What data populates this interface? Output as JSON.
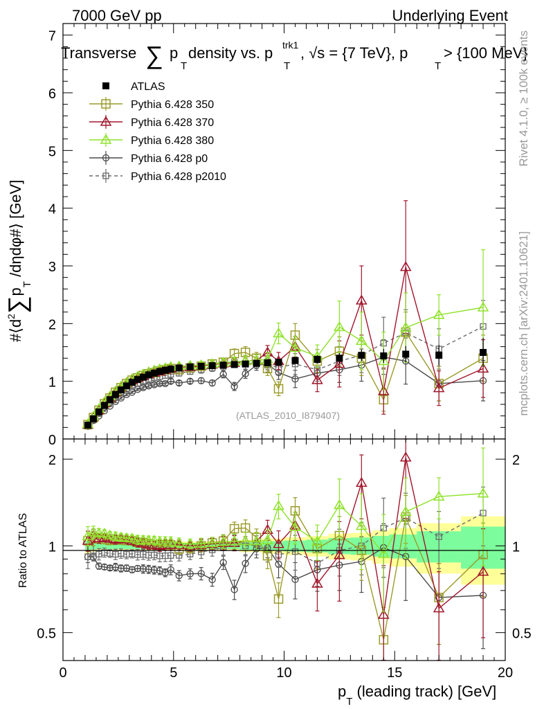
{
  "header": {
    "left": "7000 GeV pp",
    "right": "Underlying Event"
  },
  "title": {
    "prefix": "Transverse",
    "sum": "∑",
    "p": "p",
    "sub_t": "T",
    "mid": " density vs. p",
    "sup_trk1": "trk1",
    "sub_t2": "T",
    "rest": ", √s = {7 TeV}, p",
    "sub_t3": "T",
    "tail": " > {100 MeV}"
  },
  "side_labels": {
    "rivet": "Rivet 4.1.0, ≥ 100k events",
    "mcplots": "mcplots.cern.ch [arXiv:2401.10621]"
  },
  "watermark": "(ATLAS_2010_I879407)",
  "axes": {
    "ylabel_main_parts": [
      "#⟨d",
      "2",
      "∑",
      "p",
      "T",
      " /dηdφ#⟩ [GeV]"
    ],
    "ylabel_ratio": "Ratio to ATLAS",
    "xlabel_parts": [
      "p",
      "T",
      " (leading track) [GeV]"
    ],
    "main_yticks": [
      "0",
      "1",
      "2",
      "3",
      "4",
      "5",
      "6",
      "7"
    ],
    "ratio_yticks": [
      "0.5",
      "1",
      "2"
    ],
    "xticks": [
      "0",
      "5",
      "10",
      "15",
      "20"
    ]
  },
  "colors": {
    "atlas": "#000000",
    "p350": "#9a9a2a",
    "p370": "#a0142a",
    "p380": "#8ee22a",
    "p0": "#4a4a4a",
    "p2010": "#6a6a6a",
    "band_inner": "#7cfc9c",
    "band_outer": "#ffff99"
  },
  "chart_data": {
    "type": "scatter",
    "xlim": [
      0,
      20
    ],
    "main_ylim": [
      0,
      7.2
    ],
    "ratio_ylim": [
      0.4,
      2.35
    ],
    "x": [
      1.0,
      1.25,
      1.5,
      1.75,
      2.0,
      2.25,
      2.5,
      2.75,
      3.0,
      3.25,
      3.5,
      3.75,
      4.0,
      4.25,
      4.5,
      4.75,
      5.0,
      5.25,
      5.5,
      5.75,
      6.0,
      6.25,
      6.5,
      6.75,
      7.0,
      7.25,
      7.5,
      7.75,
      8.0,
      8.25,
      8.5,
      8.75,
      9.0,
      9.25,
      9.5,
      9.75,
      10.0,
      10.5,
      11.0,
      11.5,
      12.0,
      12.5,
      13.0,
      13.5,
      14.0,
      14.5,
      15.0,
      15.5,
      16.5,
      17.0,
      18.5,
      19.0
    ],
    "bins_x": [
      1.125,
      1.375,
      1.625,
      1.875,
      2.125,
      2.375,
      2.625,
      2.875,
      3.125,
      3.375,
      3.625,
      3.875,
      4.125,
      4.375,
      4.625,
      4.875,
      5.25,
      5.75,
      6.25,
      6.75,
      7.25,
      7.75,
      8.25,
      8.75,
      9.25,
      9.75,
      10.5,
      11.5,
      12.5,
      13.5,
      14.5,
      15.5,
      17.0,
      19.0
    ],
    "series": [
      {
        "name": "ATLAS",
        "key": "atlas",
        "values": [
          0.24,
          0.35,
          0.47,
          0.58,
          0.68,
          0.77,
          0.85,
          0.92,
          0.98,
          1.03,
          1.07,
          1.11,
          1.14,
          1.17,
          1.19,
          1.21,
          1.23,
          1.25,
          1.26,
          1.27,
          1.28,
          1.29,
          1.3,
          1.31,
          1.32,
          1.33,
          1.36,
          1.38,
          1.4,
          1.45,
          1.44,
          1.47,
          1.45,
          1.5
        ],
        "errors": [
          0.01,
          0.01,
          0.01,
          0.01,
          0.01,
          0.01,
          0.01,
          0.01,
          0.01,
          0.01,
          0.01,
          0.01,
          0.01,
          0.02,
          0.02,
          0.02,
          0.02,
          0.02,
          0.02,
          0.03,
          0.03,
          0.03,
          0.04,
          0.04,
          0.05,
          0.05,
          0.06,
          0.07,
          0.09,
          0.1,
          0.12,
          0.14,
          0.18,
          0.25
        ]
      },
      {
        "name": "Pythia 6.428 350",
        "key": "p350",
        "values": [
          0.25,
          0.37,
          0.5,
          0.61,
          0.71,
          0.81,
          0.89,
          0.96,
          1.02,
          1.06,
          1.1,
          1.13,
          1.15,
          1.18,
          1.2,
          1.22,
          1.2,
          1.23,
          1.26,
          1.3,
          1.33,
          1.48,
          1.5,
          1.4,
          1.22,
          0.87,
          1.8,
          1.35,
          1.52,
          1.4,
          0.68,
          1.85,
          0.96,
          1.4
        ],
        "errors": [
          0.02,
          0.02,
          0.02,
          0.02,
          0.02,
          0.03,
          0.03,
          0.03,
          0.03,
          0.04,
          0.04,
          0.04,
          0.04,
          0.05,
          0.05,
          0.05,
          0.05,
          0.05,
          0.06,
          0.06,
          0.07,
          0.08,
          0.1,
          0.1,
          0.12,
          0.12,
          0.2,
          0.2,
          0.25,
          0.3,
          0.2,
          0.35,
          0.3,
          0.4
        ]
      },
      {
        "name": "Pythia 6.428 370",
        "key": "p370",
        "values": [
          0.25,
          0.38,
          0.5,
          0.62,
          0.72,
          0.81,
          0.9,
          0.97,
          1.02,
          1.06,
          1.09,
          1.12,
          1.15,
          1.17,
          1.2,
          1.22,
          1.24,
          1.25,
          1.27,
          1.29,
          1.31,
          1.32,
          1.35,
          1.36,
          1.5,
          1.35,
          1.6,
          1.02,
          1.3,
          2.4,
          0.83,
          2.98,
          0.88,
          1.22
        ],
        "errors": [
          0.02,
          0.02,
          0.02,
          0.02,
          0.02,
          0.03,
          0.03,
          0.03,
          0.03,
          0.04,
          0.04,
          0.04,
          0.04,
          0.05,
          0.05,
          0.05,
          0.05,
          0.05,
          0.06,
          0.06,
          0.07,
          0.08,
          0.1,
          0.1,
          0.12,
          0.15,
          0.18,
          0.2,
          0.4,
          0.6,
          0.4,
          1.15,
          0.3,
          0.5
        ]
      },
      {
        "name": "Pythia 6.428 380",
        "key": "p380",
        "values": [
          0.26,
          0.39,
          0.52,
          0.64,
          0.74,
          0.83,
          0.91,
          0.98,
          1.04,
          1.08,
          1.12,
          1.16,
          1.19,
          1.21,
          1.23,
          1.25,
          1.26,
          1.27,
          1.28,
          1.3,
          1.32,
          1.34,
          1.35,
          1.36,
          1.38,
          1.83,
          1.58,
          1.43,
          1.94,
          1.7,
          1.35,
          1.93,
          2.15,
          2.28
        ],
        "errors": [
          0.02,
          0.02,
          0.02,
          0.02,
          0.02,
          0.03,
          0.03,
          0.03,
          0.03,
          0.04,
          0.04,
          0.04,
          0.04,
          0.05,
          0.05,
          0.05,
          0.05,
          0.05,
          0.06,
          0.06,
          0.07,
          0.08,
          0.1,
          0.1,
          0.12,
          0.18,
          0.2,
          0.2,
          0.45,
          0.5,
          0.5,
          0.6,
          0.35,
          1.0
        ]
      },
      {
        "name": "Pythia 6.428 p0",
        "key": "p0",
        "values": [
          0.22,
          0.32,
          0.4,
          0.49,
          0.57,
          0.65,
          0.71,
          0.77,
          0.81,
          0.86,
          0.89,
          0.92,
          0.94,
          0.96,
          0.96,
          1.0,
          0.97,
          1.0,
          1.01,
          0.97,
          1.12,
          0.91,
          1.13,
          1.28,
          1.3,
          1.15,
          1.04,
          1.14,
          1.2,
          1.28,
          1.42,
          1.35,
          0.96,
          1.01
        ],
        "errors": [
          0.01,
          0.01,
          0.01,
          0.01,
          0.01,
          0.02,
          0.02,
          0.02,
          0.02,
          0.02,
          0.03,
          0.03,
          0.03,
          0.03,
          0.03,
          0.04,
          0.04,
          0.04,
          0.05,
          0.05,
          0.06,
          0.07,
          0.08,
          0.09,
          0.1,
          0.12,
          0.15,
          0.18,
          0.22,
          0.28,
          0.3,
          0.4,
          0.3,
          0.35
        ]
      },
      {
        "name": "Pythia 6.428 p2010",
        "key": "p2010",
        "values": [
          0.22,
          0.33,
          0.44,
          0.55,
          0.64,
          0.72,
          0.8,
          0.86,
          0.92,
          0.96,
          1.0,
          1.03,
          1.06,
          1.08,
          1.1,
          1.12,
          1.14,
          1.17,
          1.2,
          1.23,
          1.26,
          1.33,
          1.3,
          1.32,
          1.28,
          1.24,
          1.3,
          1.2,
          1.35,
          1.45,
          1.66,
          1.84,
          1.56,
          1.95
        ],
        "errors": [
          0.02,
          0.02,
          0.02,
          0.02,
          0.02,
          0.03,
          0.03,
          0.03,
          0.03,
          0.04,
          0.04,
          0.04,
          0.04,
          0.05,
          0.05,
          0.05,
          0.05,
          0.05,
          0.06,
          0.06,
          0.07,
          0.08,
          0.1,
          0.1,
          0.12,
          0.12,
          0.18,
          0.2,
          0.25,
          0.3,
          0.45,
          0.4,
          0.35,
          0.45
        ]
      }
    ],
    "legend_position": "top-left"
  }
}
